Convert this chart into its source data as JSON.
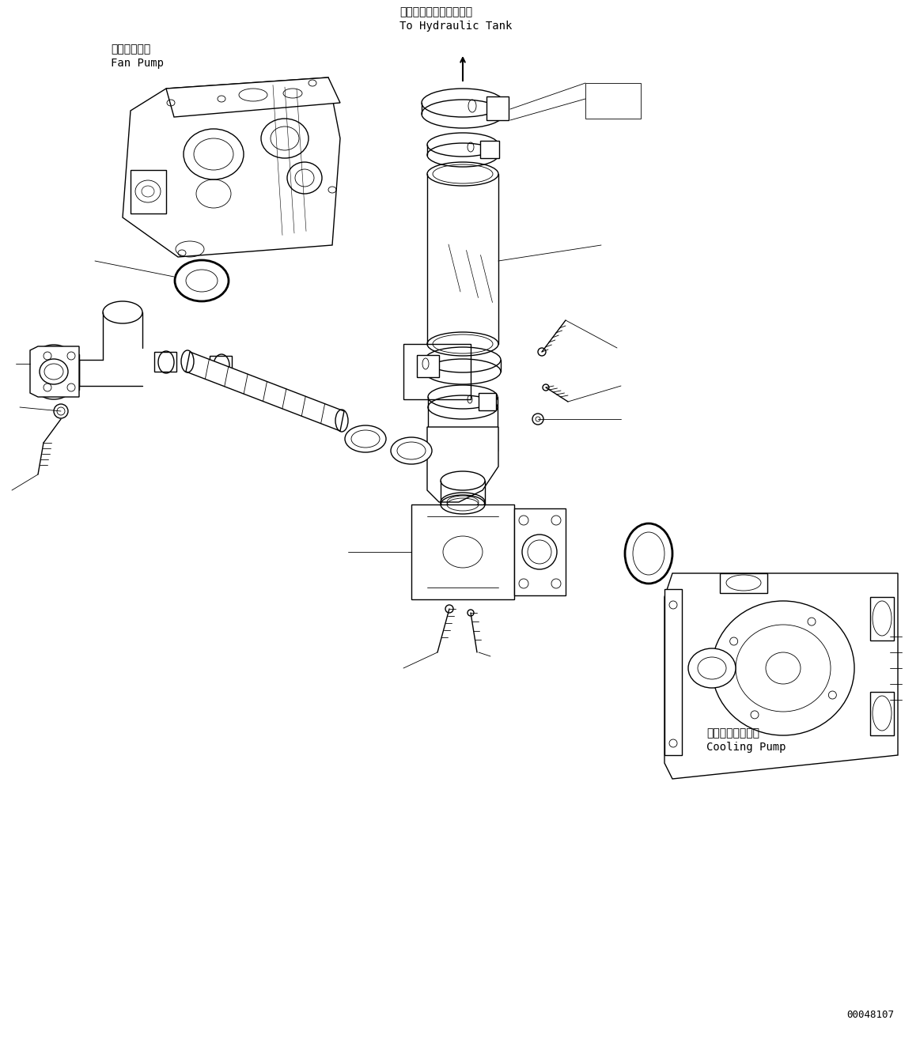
{
  "background_color": "#ffffff",
  "fig_width": 11.63,
  "fig_height": 13.14,
  "dpi": 100,
  "label_fan_pump_jp": "ファンポンプ",
  "label_fan_pump_en": "Fan Pump",
  "label_hydraulic_jp": "ハイドロリックタンクへ",
  "label_hydraulic_en": "To Hydraulic Tank",
  "label_cooling_jp": "クーリングポンプ",
  "label_cooling_en": "Cooling Pump",
  "part_number": "00048107",
  "lc": "#000000",
  "lw": 1.0,
  "tlw": 0.6
}
